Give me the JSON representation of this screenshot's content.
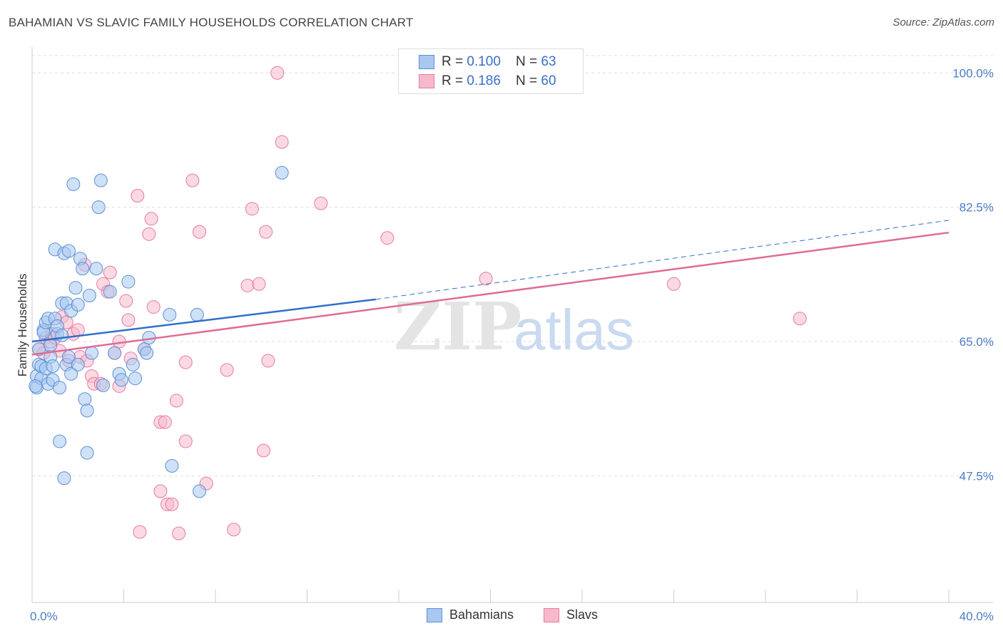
{
  "title": "BAHAMIAN VS SLAVIC FAMILY HOUSEHOLDS CORRELATION CHART",
  "source": "Source: ZipAtlas.com",
  "watermark": {
    "zip": "ZIP",
    "atlas": "atlas"
  },
  "legend": {
    "rows": [
      {
        "r_label": "R = ",
        "r_value": "0.100",
        "n_label": "N = ",
        "n_value": "63"
      },
      {
        "r_label": "R = ",
        "r_value": "0.186",
        "n_label": "N = ",
        "n_value": "60"
      }
    ]
  },
  "colors": {
    "blue_fill": "#a8c8f0",
    "blue_stroke": "#5b8fd6",
    "blue_line": "#2f6fcc",
    "pink_fill": "#f6b9cc",
    "pink_stroke": "#e87aa0",
    "pink_line": "#e06b95",
    "tick_text": "#4a7cc7",
    "grid": "#dddddd"
  },
  "chart_data": {
    "type": "scatter",
    "title": "BAHAMIAN VS SLAVIC FAMILY HOUSEHOLDS CORRELATION CHART",
    "xlabel": "",
    "ylabel": "Family Households",
    "xlim": [
      0,
      40
    ],
    "ylim": [
      31,
      103
    ],
    "y_ticks": [
      47.5,
      65.0,
      82.5,
      100.0
    ],
    "y_tick_labels": [
      "47.5%",
      "65.0%",
      "82.5%",
      "100.0%"
    ],
    "x_tick_labels": [
      "0.0%",
      "40.0%"
    ],
    "grid": true,
    "legend_placement": "bottom",
    "series": [
      {
        "name": "Bahamians",
        "r": 0.1,
        "n": 63,
        "trend": {
          "x0": 0,
          "y0": 65.0,
          "x1": 15,
          "y1": 70.5,
          "x_dash_end": 40,
          "y_dash_end": 80.8
        },
        "points": [
          [
            0.2,
            59.0
          ],
          [
            0.2,
            60.5
          ],
          [
            0.3,
            64.0
          ],
          [
            0.3,
            62.0
          ],
          [
            0.4,
            61.8
          ],
          [
            0.4,
            60.2
          ],
          [
            0.5,
            66.5
          ],
          [
            0.5,
            66.2
          ],
          [
            0.6,
            67.5
          ],
          [
            0.6,
            61.5
          ],
          [
            0.7,
            68.0
          ],
          [
            0.7,
            59.5
          ],
          [
            0.8,
            63.0
          ],
          [
            0.8,
            64.5
          ],
          [
            0.9,
            60.0
          ],
          [
            0.9,
            61.8
          ],
          [
            1.0,
            77.0
          ],
          [
            1.0,
            68.0
          ],
          [
            1.1,
            66.0
          ],
          [
            1.1,
            67.0
          ],
          [
            1.2,
            52.0
          ],
          [
            1.2,
            59.0
          ],
          [
            1.3,
            70.0
          ],
          [
            1.3,
            65.8
          ],
          [
            1.4,
            47.2
          ],
          [
            1.4,
            76.5
          ],
          [
            1.5,
            62.0
          ],
          [
            1.5,
            70.0
          ],
          [
            1.6,
            76.8
          ],
          [
            1.6,
            63.0
          ],
          [
            1.7,
            60.8
          ],
          [
            1.7,
            69.0
          ],
          [
            1.8,
            85.5
          ],
          [
            1.9,
            72.0
          ],
          [
            2.0,
            69.8
          ],
          [
            2.0,
            62.0
          ],
          [
            2.1,
            75.8
          ],
          [
            2.2,
            74.5
          ],
          [
            2.3,
            57.5
          ],
          [
            2.4,
            50.5
          ],
          [
            2.4,
            56.0
          ],
          [
            2.5,
            71.0
          ],
          [
            2.6,
            63.5
          ],
          [
            2.8,
            74.5
          ],
          [
            2.9,
            82.5
          ],
          [
            3.0,
            86.0
          ],
          [
            3.1,
            59.3
          ],
          [
            3.4,
            71.5
          ],
          [
            3.6,
            63.5
          ],
          [
            3.8,
            60.8
          ],
          [
            3.9,
            60.0
          ],
          [
            4.2,
            72.8
          ],
          [
            4.4,
            62.0
          ],
          [
            4.5,
            60.2
          ],
          [
            4.9,
            64.0
          ],
          [
            5.0,
            63.5
          ],
          [
            5.1,
            65.5
          ],
          [
            6.0,
            68.5
          ],
          [
            6.1,
            48.8
          ],
          [
            7.2,
            68.5
          ],
          [
            7.3,
            45.5
          ],
          [
            10.9,
            87.0
          ],
          [
            0.15,
            59.2
          ]
        ]
      },
      {
        "name": "Slavs",
        "r": 0.186,
        "n": 60,
        "trend": {
          "x0": 0,
          "y0": 63.3,
          "x1": 40,
          "y1": 79.2
        },
        "points": [
          [
            0.3,
            64.0
          ],
          [
            0.5,
            63.5
          ],
          [
            0.6,
            65.5
          ],
          [
            0.8,
            65.0
          ],
          [
            0.9,
            66.0
          ],
          [
            1.0,
            65.5
          ],
          [
            1.2,
            63.8
          ],
          [
            1.3,
            68.2
          ],
          [
            1.5,
            67.5
          ],
          [
            1.6,
            62.5
          ],
          [
            1.8,
            66.0
          ],
          [
            2.0,
            66.5
          ],
          [
            2.1,
            63.0
          ],
          [
            2.3,
            75.0
          ],
          [
            2.4,
            62.5
          ],
          [
            2.6,
            60.5
          ],
          [
            2.7,
            59.5
          ],
          [
            3.0,
            59.5
          ],
          [
            3.1,
            72.5
          ],
          [
            3.3,
            71.5
          ],
          [
            3.4,
            74.0
          ],
          [
            3.6,
            63.5
          ],
          [
            3.8,
            65.0
          ],
          [
            3.8,
            59.2
          ],
          [
            4.1,
            70.3
          ],
          [
            4.2,
            67.8
          ],
          [
            4.3,
            62.8
          ],
          [
            4.6,
            84.0
          ],
          [
            4.7,
            40.2
          ],
          [
            4.9,
            64.0
          ],
          [
            5.1,
            79.0
          ],
          [
            5.2,
            81.0
          ],
          [
            5.3,
            69.5
          ],
          [
            5.6,
            45.5
          ],
          [
            5.6,
            54.5
          ],
          [
            5.8,
            54.5
          ],
          [
            5.9,
            43.8
          ],
          [
            6.1,
            43.8
          ],
          [
            6.3,
            57.3
          ],
          [
            6.4,
            40.0
          ],
          [
            6.7,
            52.0
          ],
          [
            6.7,
            62.3
          ],
          [
            7.0,
            86.0
          ],
          [
            7.3,
            79.3
          ],
          [
            7.6,
            46.5
          ],
          [
            8.5,
            61.3
          ],
          [
            8.8,
            40.5
          ],
          [
            9.4,
            72.3
          ],
          [
            9.6,
            82.3
          ],
          [
            9.9,
            72.5
          ],
          [
            10.1,
            50.8
          ],
          [
            10.2,
            79.3
          ],
          [
            10.3,
            62.5
          ],
          [
            10.7,
            100.0
          ],
          [
            10.9,
            91.0
          ],
          [
            12.6,
            83.0
          ],
          [
            15.5,
            78.5
          ],
          [
            19.8,
            73.2
          ],
          [
            28.0,
            72.5
          ],
          [
            33.5,
            68.0
          ]
        ]
      }
    ]
  }
}
